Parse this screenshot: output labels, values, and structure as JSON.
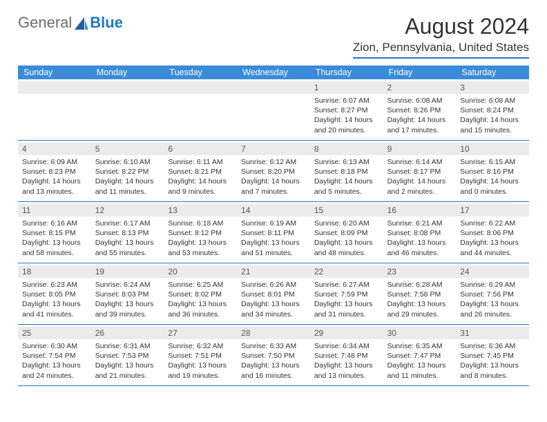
{
  "logo": {
    "general": "General",
    "blue": "Blue"
  },
  "title": "August 2024",
  "location": "Zion, Pennsylvania, United States",
  "colors": {
    "header_bg": "#3a8bd8",
    "header_text": "#ffffff",
    "daynum_bg": "#ebebeb",
    "rule": "#2176c7",
    "body_text": "#333333"
  },
  "weekdays": [
    "Sunday",
    "Monday",
    "Tuesday",
    "Wednesday",
    "Thursday",
    "Friday",
    "Saturday"
  ],
  "weeks": [
    [
      {
        "day": "",
        "sunrise": "",
        "sunset": "",
        "daylight": ""
      },
      {
        "day": "",
        "sunrise": "",
        "sunset": "",
        "daylight": ""
      },
      {
        "day": "",
        "sunrise": "",
        "sunset": "",
        "daylight": ""
      },
      {
        "day": "",
        "sunrise": "",
        "sunset": "",
        "daylight": ""
      },
      {
        "day": "1",
        "sunrise": "Sunrise: 6:07 AM",
        "sunset": "Sunset: 8:27 PM",
        "daylight": "Daylight: 14 hours and 20 minutes."
      },
      {
        "day": "2",
        "sunrise": "Sunrise: 6:08 AM",
        "sunset": "Sunset: 8:26 PM",
        "daylight": "Daylight: 14 hours and 17 minutes."
      },
      {
        "day": "3",
        "sunrise": "Sunrise: 6:08 AM",
        "sunset": "Sunset: 8:24 PM",
        "daylight": "Daylight: 14 hours and 15 minutes."
      }
    ],
    [
      {
        "day": "4",
        "sunrise": "Sunrise: 6:09 AM",
        "sunset": "Sunset: 8:23 PM",
        "daylight": "Daylight: 14 hours and 13 minutes."
      },
      {
        "day": "5",
        "sunrise": "Sunrise: 6:10 AM",
        "sunset": "Sunset: 8:22 PM",
        "daylight": "Daylight: 14 hours and 11 minutes."
      },
      {
        "day": "6",
        "sunrise": "Sunrise: 6:11 AM",
        "sunset": "Sunset: 8:21 PM",
        "daylight": "Daylight: 14 hours and 9 minutes."
      },
      {
        "day": "7",
        "sunrise": "Sunrise: 6:12 AM",
        "sunset": "Sunset: 8:20 PM",
        "daylight": "Daylight: 14 hours and 7 minutes."
      },
      {
        "day": "8",
        "sunrise": "Sunrise: 6:13 AM",
        "sunset": "Sunset: 8:18 PM",
        "daylight": "Daylight: 14 hours and 5 minutes."
      },
      {
        "day": "9",
        "sunrise": "Sunrise: 6:14 AM",
        "sunset": "Sunset: 8:17 PM",
        "daylight": "Daylight: 14 hours and 2 minutes."
      },
      {
        "day": "10",
        "sunrise": "Sunrise: 6:15 AM",
        "sunset": "Sunset: 8:16 PM",
        "daylight": "Daylight: 14 hours and 0 minutes."
      }
    ],
    [
      {
        "day": "11",
        "sunrise": "Sunrise: 6:16 AM",
        "sunset": "Sunset: 8:15 PM",
        "daylight": "Daylight: 13 hours and 58 minutes."
      },
      {
        "day": "12",
        "sunrise": "Sunrise: 6:17 AM",
        "sunset": "Sunset: 8:13 PM",
        "daylight": "Daylight: 13 hours and 55 minutes."
      },
      {
        "day": "13",
        "sunrise": "Sunrise: 6:18 AM",
        "sunset": "Sunset: 8:12 PM",
        "daylight": "Daylight: 13 hours and 53 minutes."
      },
      {
        "day": "14",
        "sunrise": "Sunrise: 6:19 AM",
        "sunset": "Sunset: 8:11 PM",
        "daylight": "Daylight: 13 hours and 51 minutes."
      },
      {
        "day": "15",
        "sunrise": "Sunrise: 6:20 AM",
        "sunset": "Sunset: 8:09 PM",
        "daylight": "Daylight: 13 hours and 48 minutes."
      },
      {
        "day": "16",
        "sunrise": "Sunrise: 6:21 AM",
        "sunset": "Sunset: 8:08 PM",
        "daylight": "Daylight: 13 hours and 46 minutes."
      },
      {
        "day": "17",
        "sunrise": "Sunrise: 6:22 AM",
        "sunset": "Sunset: 8:06 PM",
        "daylight": "Daylight: 13 hours and 44 minutes."
      }
    ],
    [
      {
        "day": "18",
        "sunrise": "Sunrise: 6:23 AM",
        "sunset": "Sunset: 8:05 PM",
        "daylight": "Daylight: 13 hours and 41 minutes."
      },
      {
        "day": "19",
        "sunrise": "Sunrise: 6:24 AM",
        "sunset": "Sunset: 8:03 PM",
        "daylight": "Daylight: 13 hours and 39 minutes."
      },
      {
        "day": "20",
        "sunrise": "Sunrise: 6:25 AM",
        "sunset": "Sunset: 8:02 PM",
        "daylight": "Daylight: 13 hours and 36 minutes."
      },
      {
        "day": "21",
        "sunrise": "Sunrise: 6:26 AM",
        "sunset": "Sunset: 8:01 PM",
        "daylight": "Daylight: 13 hours and 34 minutes."
      },
      {
        "day": "22",
        "sunrise": "Sunrise: 6:27 AM",
        "sunset": "Sunset: 7:59 PM",
        "daylight": "Daylight: 13 hours and 31 minutes."
      },
      {
        "day": "23",
        "sunrise": "Sunrise: 6:28 AM",
        "sunset": "Sunset: 7:58 PM",
        "daylight": "Daylight: 13 hours and 29 minutes."
      },
      {
        "day": "24",
        "sunrise": "Sunrise: 6:29 AM",
        "sunset": "Sunset: 7:56 PM",
        "daylight": "Daylight: 13 hours and 26 minutes."
      }
    ],
    [
      {
        "day": "25",
        "sunrise": "Sunrise: 6:30 AM",
        "sunset": "Sunset: 7:54 PM",
        "daylight": "Daylight: 13 hours and 24 minutes."
      },
      {
        "day": "26",
        "sunrise": "Sunrise: 6:31 AM",
        "sunset": "Sunset: 7:53 PM",
        "daylight": "Daylight: 13 hours and 21 minutes."
      },
      {
        "day": "27",
        "sunrise": "Sunrise: 6:32 AM",
        "sunset": "Sunset: 7:51 PM",
        "daylight": "Daylight: 13 hours and 19 minutes."
      },
      {
        "day": "28",
        "sunrise": "Sunrise: 6:33 AM",
        "sunset": "Sunset: 7:50 PM",
        "daylight": "Daylight: 13 hours and 16 minutes."
      },
      {
        "day": "29",
        "sunrise": "Sunrise: 6:34 AM",
        "sunset": "Sunset: 7:48 PM",
        "daylight": "Daylight: 13 hours and 13 minutes."
      },
      {
        "day": "30",
        "sunrise": "Sunrise: 6:35 AM",
        "sunset": "Sunset: 7:47 PM",
        "daylight": "Daylight: 13 hours and 11 minutes."
      },
      {
        "day": "31",
        "sunrise": "Sunrise: 6:36 AM",
        "sunset": "Sunset: 7:45 PM",
        "daylight": "Daylight: 13 hours and 8 minutes."
      }
    ]
  ]
}
